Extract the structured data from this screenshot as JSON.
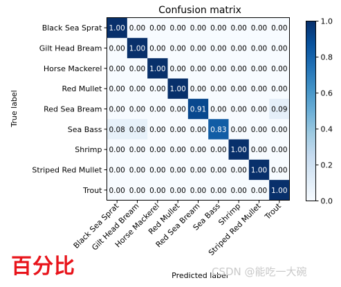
{
  "chart_data": {
    "type": "heatmap",
    "title": "Confusion matrix",
    "xlabel": "Predicted label",
    "ylabel": "True label",
    "rows": [
      "Black Sea Sprat",
      "Gilt Head Bream",
      "Horse Mackerel",
      "Red Mullet",
      "Red Sea Bream",
      "Sea Bass",
      "Shrimp",
      "Striped Red Mullet",
      "Trout"
    ],
    "columns": [
      "Black Sea Sprat",
      "Gilt Head Bream",
      "Horse Mackerel",
      "Red Mullet",
      "Red Sea Bream",
      "Sea Bass",
      "Shrimp",
      "Striped Red Mullet",
      "Trout"
    ],
    "values": [
      [
        1.0,
        0.0,
        0.0,
        0.0,
        0.0,
        0.0,
        0.0,
        0.0,
        0.0
      ],
      [
        0.0,
        1.0,
        0.0,
        0.0,
        0.0,
        0.0,
        0.0,
        0.0,
        0.0
      ],
      [
        0.0,
        0.0,
        1.0,
        0.0,
        0.0,
        0.0,
        0.0,
        0.0,
        0.0
      ],
      [
        0.0,
        0.0,
        0.0,
        1.0,
        0.0,
        0.0,
        0.0,
        0.0,
        0.0
      ],
      [
        0.0,
        0.0,
        0.0,
        0.0,
        0.91,
        0.0,
        0.0,
        0.0,
        0.09
      ],
      [
        0.08,
        0.08,
        0.0,
        0.0,
        0.0,
        0.83,
        0.0,
        0.0,
        0.0
      ],
      [
        0.0,
        0.0,
        0.0,
        0.0,
        0.0,
        0.0,
        1.0,
        0.0,
        0.0
      ],
      [
        0.0,
        0.0,
        0.0,
        0.0,
        0.0,
        0.0,
        0.0,
        1.0,
        0.0
      ],
      [
        0.0,
        0.0,
        0.0,
        0.0,
        0.0,
        0.0,
        0.0,
        0.0,
        1.0
      ]
    ],
    "value_format_decimals": 2,
    "colormap": "Blues",
    "colorbar": {
      "min": 0.0,
      "max": 1.0,
      "ticks": [
        0.0,
        0.2,
        0.4,
        0.6,
        0.8,
        1.0
      ]
    },
    "grid": false
  },
  "watermarks": {
    "overlay_text": "百分比",
    "overlay_color": "#e8141b",
    "source_text": "CSDN @能吃一大碗"
  }
}
